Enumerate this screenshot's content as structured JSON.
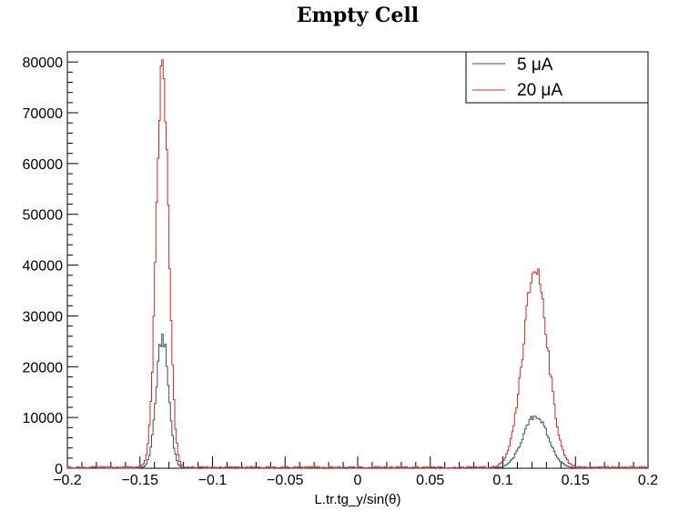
{
  "chart_data": {
    "type": "line",
    "title": "Empty Cell",
    "xlabel": "L.tr.tg_y/sin(θ)",
    "ylabel": "",
    "xlim": [
      -0.2,
      0.2
    ],
    "ylim": [
      0,
      82000
    ],
    "x_tick_labels": [
      "−0.2",
      "−0.15",
      "−0.1",
      "−0.05",
      "0",
      "0.05",
      "0.1",
      "0.15",
      "0.2"
    ],
    "y_tick_labels": [
      "0",
      "10000",
      "20000",
      "30000",
      "40000",
      "50000",
      "60000",
      "70000",
      "80000"
    ],
    "grid": false,
    "legend_position": "top-right",
    "series": [
      {
        "name": "5 μA",
        "color": "#3d4f63",
        "peaks": [
          {
            "center": -0.1345,
            "height": 25800,
            "sigma": 0.0042
          },
          {
            "center": 0.1225,
            "height": 10300,
            "sigma": 0.0085
          }
        ]
      },
      {
        "name": "20 μA",
        "color": "#cc2b2b",
        "peaks": [
          {
            "center": -0.1345,
            "height": 78500,
            "sigma": 0.0042
          },
          {
            "center": 0.1225,
            "height": 39000,
            "sigma": 0.0085
          }
        ]
      }
    ]
  }
}
